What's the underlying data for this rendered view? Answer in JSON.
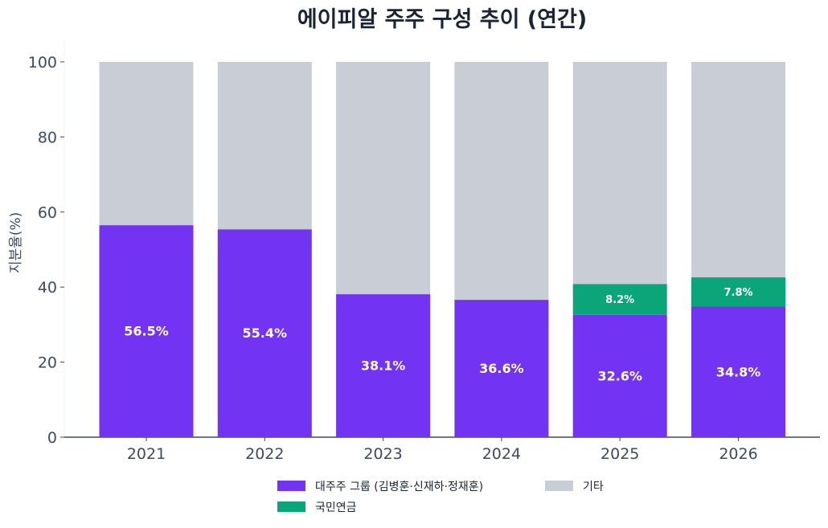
{
  "chart_data": {
    "type": "bar",
    "stacked": true,
    "title": "에이피알 주주 구성 추이 (연간)",
    "xlabel": "",
    "ylabel": "지분율(%)",
    "ylim": [
      0,
      100
    ],
    "yticks": [
      0,
      20,
      40,
      60,
      80,
      100
    ],
    "categories": [
      "2021",
      "2022",
      "2023",
      "2024",
      "2025",
      "2026"
    ],
    "series": [
      {
        "name": "대주주 그룹 (김병훈·신재하·정재훈)",
        "color": "#7233f2",
        "values": [
          56.5,
          55.4,
          38.1,
          36.6,
          32.6,
          34.8
        ],
        "labels": [
          "56.5%",
          "55.4%",
          "38.1%",
          "36.6%",
          "32.6%",
          "34.8%"
        ]
      },
      {
        "name": "국민연금",
        "color": "#0aa67a",
        "values": [
          0,
          0,
          0,
          0,
          8.2,
          7.8
        ],
        "labels": [
          "",
          "",
          "",
          "",
          "8.2%",
          "7.8%"
        ]
      },
      {
        "name": "기타",
        "color": "#c9cdd6",
        "values": [
          43.5,
          44.6,
          61.9,
          63.4,
          59.2,
          57.4
        ],
        "labels": [
          "",
          "",
          "",
          "",
          "",
          ""
        ]
      }
    ],
    "legend_position": "bottom",
    "legend_order": [
      0,
      2,
      1
    ],
    "grid": false
  }
}
